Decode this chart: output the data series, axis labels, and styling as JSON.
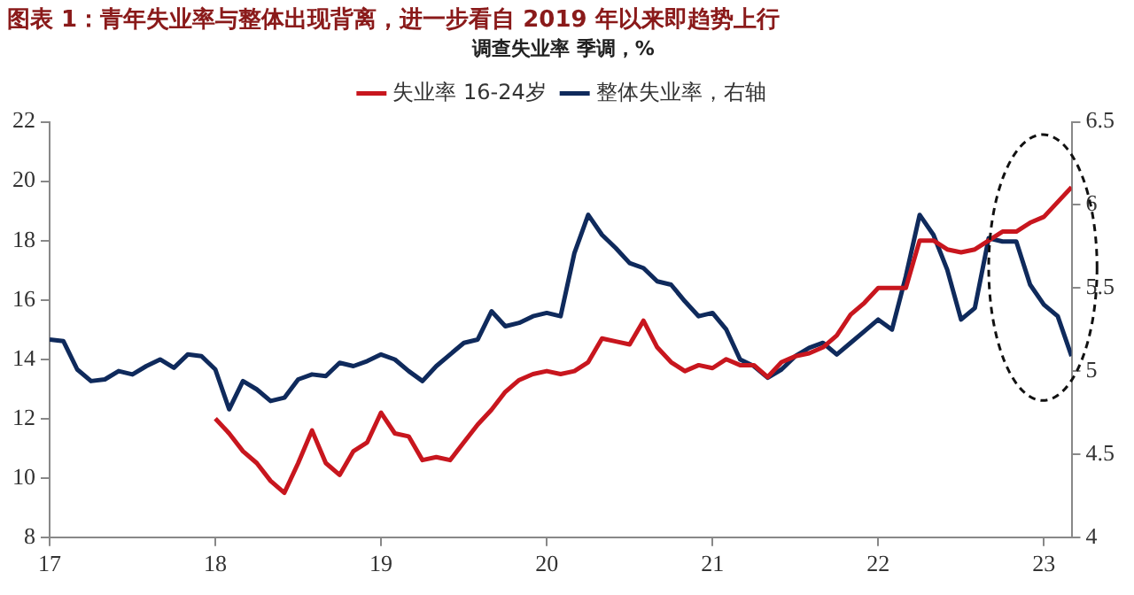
{
  "chart_data": {
    "type": "line",
    "title": "图表 1：青年失业率与整体出现背离，进一步看自 2019 年以来即趋势上行",
    "subtitle": "调查失业率 季调，%",
    "xlim": [
      "2017-01",
      "2023-03"
    ],
    "xticks": [
      {
        "value": "2017-01",
        "label": "17"
      },
      {
        "value": "2018-01",
        "label": "18"
      },
      {
        "value": "2019-01",
        "label": "19"
      },
      {
        "value": "2020-01",
        "label": "20"
      },
      {
        "value": "2021-01",
        "label": "21"
      },
      {
        "value": "2022-01",
        "label": "22"
      },
      {
        "value": "2023-01",
        "label": "23"
      }
    ],
    "ylim": [
      8,
      22
    ],
    "yticks": [
      8,
      10,
      12,
      14,
      16,
      18,
      20,
      22
    ],
    "y2lim": [
      4,
      6.5
    ],
    "y2ticks": [
      4,
      4.5,
      5,
      5.5,
      6,
      6.5
    ],
    "grid": false,
    "legend": "top",
    "marker": "none",
    "line_style": "solid",
    "series": [
      {
        "name": "失业率 16-24岁",
        "color": "#c8161e",
        "x": [
          "2018-01",
          "2018-02",
          "2018-03",
          "2018-04",
          "2018-05",
          "2018-06",
          "2018-07",
          "2018-08",
          "2018-09",
          "2018-10",
          "2018-11",
          "2018-12",
          "2019-01",
          "2019-02",
          "2019-03",
          "2019-04",
          "2019-05",
          "2019-06",
          "2019-07",
          "2019-08",
          "2019-09",
          "2019-10",
          "2019-11",
          "2019-12",
          "2020-01",
          "2020-02",
          "2020-03",
          "2020-04",
          "2020-05",
          "2020-06",
          "2020-07",
          "2020-08",
          "2020-09",
          "2020-10",
          "2020-11",
          "2020-12",
          "2021-01",
          "2021-02",
          "2021-03",
          "2021-04",
          "2021-05",
          "2021-06",
          "2021-07",
          "2021-08",
          "2021-09",
          "2021-10",
          "2021-11",
          "2021-12",
          "2022-01",
          "2022-02",
          "2022-03",
          "2022-04",
          "2022-05",
          "2022-06",
          "2022-07",
          "2022-08",
          "2022-09",
          "2022-10",
          "2022-11",
          "2022-12",
          "2023-01",
          "2023-02",
          "2023-03"
        ],
        "values": [
          12.0,
          11.5,
          10.9,
          10.5,
          9.9,
          9.5,
          10.5,
          11.6,
          10.5,
          10.1,
          10.9,
          11.2,
          12.2,
          11.5,
          11.4,
          10.6,
          10.7,
          10.6,
          11.2,
          11.8,
          12.3,
          12.9,
          13.3,
          13.5,
          13.6,
          13.5,
          13.6,
          13.9,
          14.7,
          14.6,
          14.5,
          15.3,
          14.4,
          13.9,
          13.6,
          13.8,
          13.7,
          14.0,
          13.8,
          13.8,
          13.4,
          13.9,
          14.1,
          14.2,
          14.4,
          14.8,
          15.5,
          15.9,
          16.4,
          16.4,
          16.4,
          18.0,
          18.0,
          17.7,
          17.6,
          17.7,
          18.0,
          18.3,
          18.3,
          18.6,
          18.8,
          19.3,
          19.8
        ]
      },
      {
        "name": "整体失业率，右轴",
        "color": "#0f2a5c",
        "axis": "y2",
        "x": [
          "2017-01",
          "2017-02",
          "2017-03",
          "2017-04",
          "2017-05",
          "2017-06",
          "2017-07",
          "2017-08",
          "2017-09",
          "2017-10",
          "2017-11",
          "2017-12",
          "2018-01",
          "2018-02",
          "2018-03",
          "2018-04",
          "2018-05",
          "2018-06",
          "2018-07",
          "2018-08",
          "2018-09",
          "2018-10",
          "2018-11",
          "2018-12",
          "2019-01",
          "2019-02",
          "2019-03",
          "2019-04",
          "2019-05",
          "2019-06",
          "2019-07",
          "2019-08",
          "2019-09",
          "2019-10",
          "2019-11",
          "2019-12",
          "2020-01",
          "2020-02",
          "2020-03",
          "2020-04",
          "2020-05",
          "2020-06",
          "2020-07",
          "2020-08",
          "2020-09",
          "2020-10",
          "2020-11",
          "2020-12",
          "2021-01",
          "2021-02",
          "2021-03",
          "2021-04",
          "2021-05",
          "2021-06",
          "2021-07",
          "2021-08",
          "2021-09",
          "2021-10",
          "2021-11",
          "2021-12",
          "2022-01",
          "2022-02",
          "2022-03",
          "2022-04",
          "2022-05",
          "2022-06",
          "2022-07",
          "2022-08",
          "2022-09",
          "2022-10",
          "2022-11",
          "2022-12",
          "2023-01",
          "2023-02",
          "2023-03"
        ],
        "values": [
          5.19,
          5.18,
          5.01,
          4.94,
          4.95,
          5.0,
          4.98,
          5.03,
          5.07,
          5.02,
          5.1,
          5.09,
          5.01,
          4.77,
          4.94,
          4.89,
          4.82,
          4.84,
          4.95,
          4.98,
          4.97,
          5.05,
          5.03,
          5.06,
          5.1,
          5.07,
          5.0,
          4.94,
          5.03,
          5.1,
          5.17,
          5.19,
          5.36,
          5.27,
          5.29,
          5.33,
          5.35,
          5.33,
          5.71,
          5.94,
          5.82,
          5.74,
          5.65,
          5.62,
          5.54,
          5.52,
          5.42,
          5.33,
          5.35,
          5.25,
          5.07,
          5.03,
          4.96,
          5.01,
          5.09,
          5.14,
          5.17,
          5.1,
          5.17,
          5.24,
          5.31,
          5.25,
          5.57,
          5.94,
          5.82,
          5.61,
          5.31,
          5.38,
          5.8,
          5.78,
          5.78,
          5.52,
          5.4,
          5.33,
          5.09
        ]
      }
    ]
  }
}
